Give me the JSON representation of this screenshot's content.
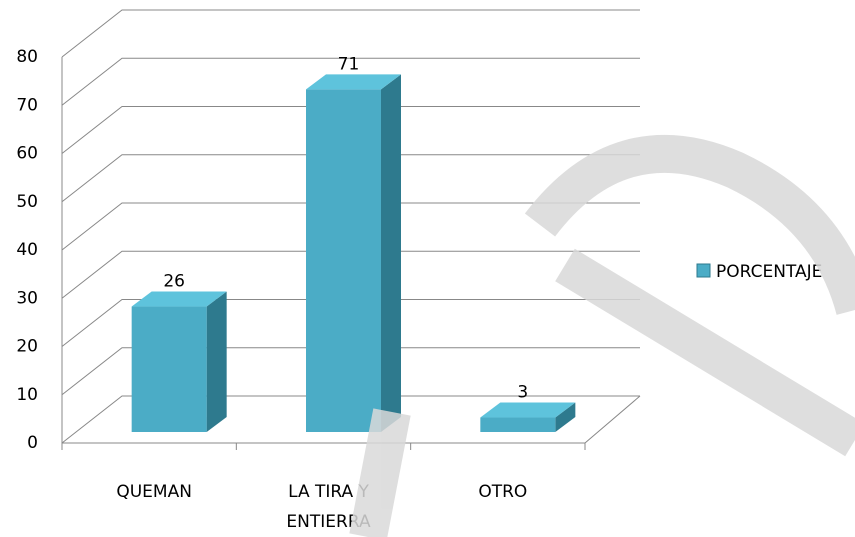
{
  "chart_data": {
    "type": "bar3d",
    "categories": [
      "QUEMAN",
      "LA TIRA Y ENTIERRA",
      "OTRO"
    ],
    "series": [
      {
        "name": "PORCENTAJE",
        "color": "#4bacc6",
        "values": [
          26,
          71,
          3
        ]
      }
    ],
    "ylim": [
      0,
      80
    ],
    "yticks": [
      0,
      10,
      20,
      30,
      40,
      50,
      60,
      70,
      80
    ],
    "grid": true,
    "legend": "right"
  }
}
